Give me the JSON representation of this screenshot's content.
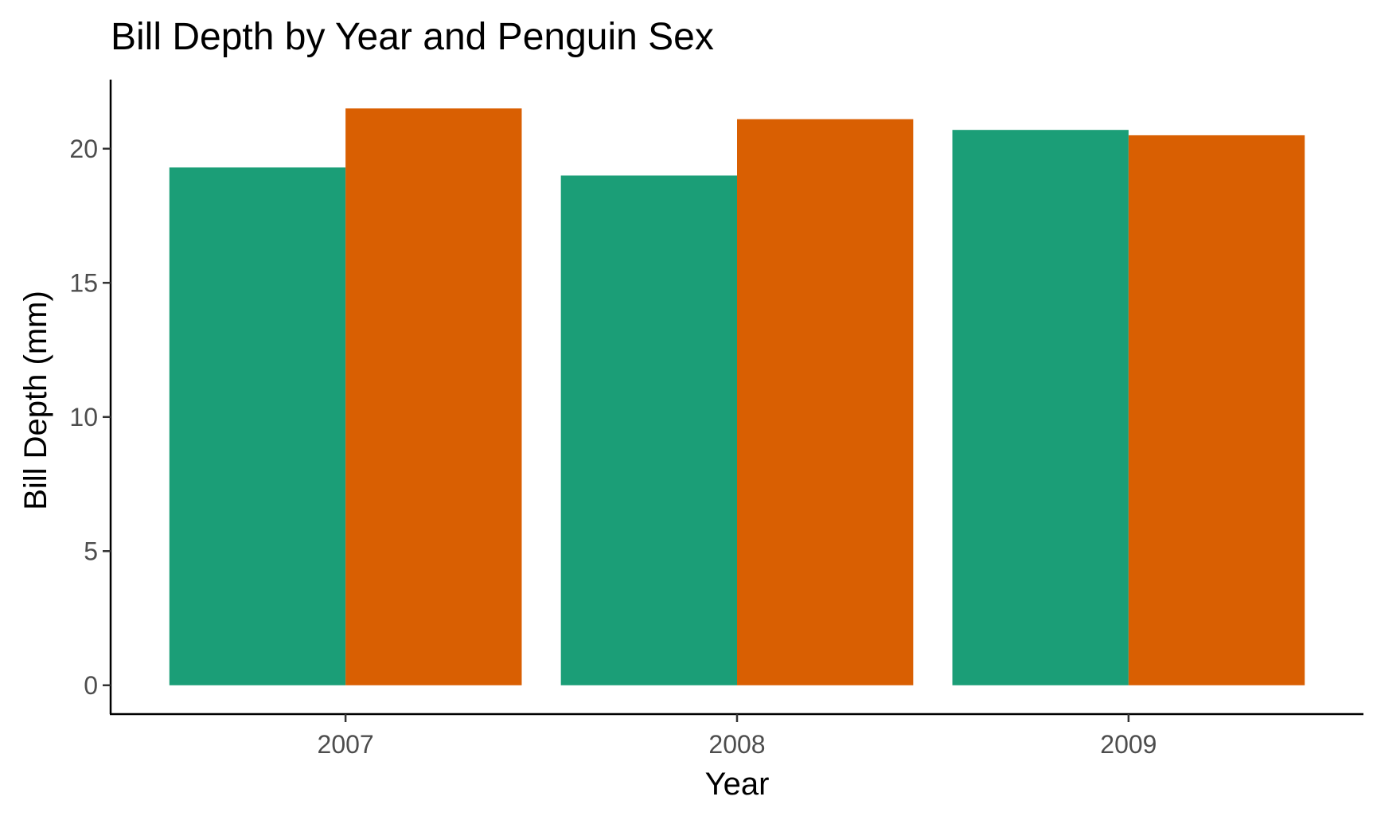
{
  "chart_data": {
    "type": "bar",
    "title": "Bill Depth by Year and Penguin Sex",
    "xlabel": "Year",
    "ylabel": "Bill Depth (mm)",
    "categories": [
      "2007",
      "2008",
      "2009"
    ],
    "series": [
      {
        "color": "#1b9e77",
        "values": [
          19.3,
          19.0,
          20.7
        ]
      },
      {
        "color": "#d95f02",
        "values": [
          21.5,
          21.1,
          20.5
        ]
      }
    ],
    "yticks": [
      0,
      5,
      10,
      15,
      20
    ],
    "ylim": [
      -1.075,
      22.575
    ],
    "grid": false,
    "legend": "none"
  }
}
